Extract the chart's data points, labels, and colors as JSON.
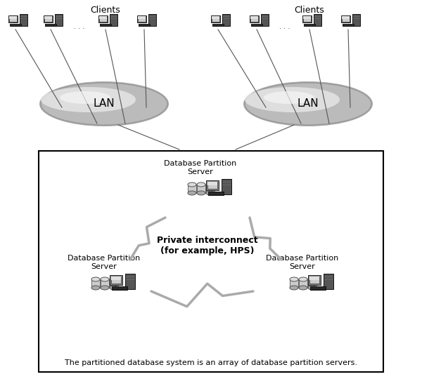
{
  "bg_color": "#ffffff",
  "box_color": "#ffffff",
  "box_edge_color": "#000000",
  "text_color": "#000000",
  "lan_label": "LAN",
  "clients_label_left": "Clients",
  "clients_label_right": "Clients",
  "db_partition_server_top": "Database Partition\nServer",
  "db_partition_server_left": "Database Partition\nServer",
  "db_partition_server_right": "Database Partition\nServer",
  "private_interconnect_label": "Private interconnect\n(for example, HPS)",
  "footer_label": "The partitioned database system is an array of database partition servers.",
  "lan_fill": "#cccccc",
  "lan_highlight": "#f0f0f0",
  "lan_shadow": "#aaaaaa",
  "lightning_color": "#999999",
  "line_color": "#333333",
  "computer_body": "#cccccc",
  "computer_screen": "#dddddd",
  "computer_dark": "#222222",
  "computer_mid": "#888888",
  "cylinder_body": "#cccccc",
  "cylinder_dark": "#999999"
}
